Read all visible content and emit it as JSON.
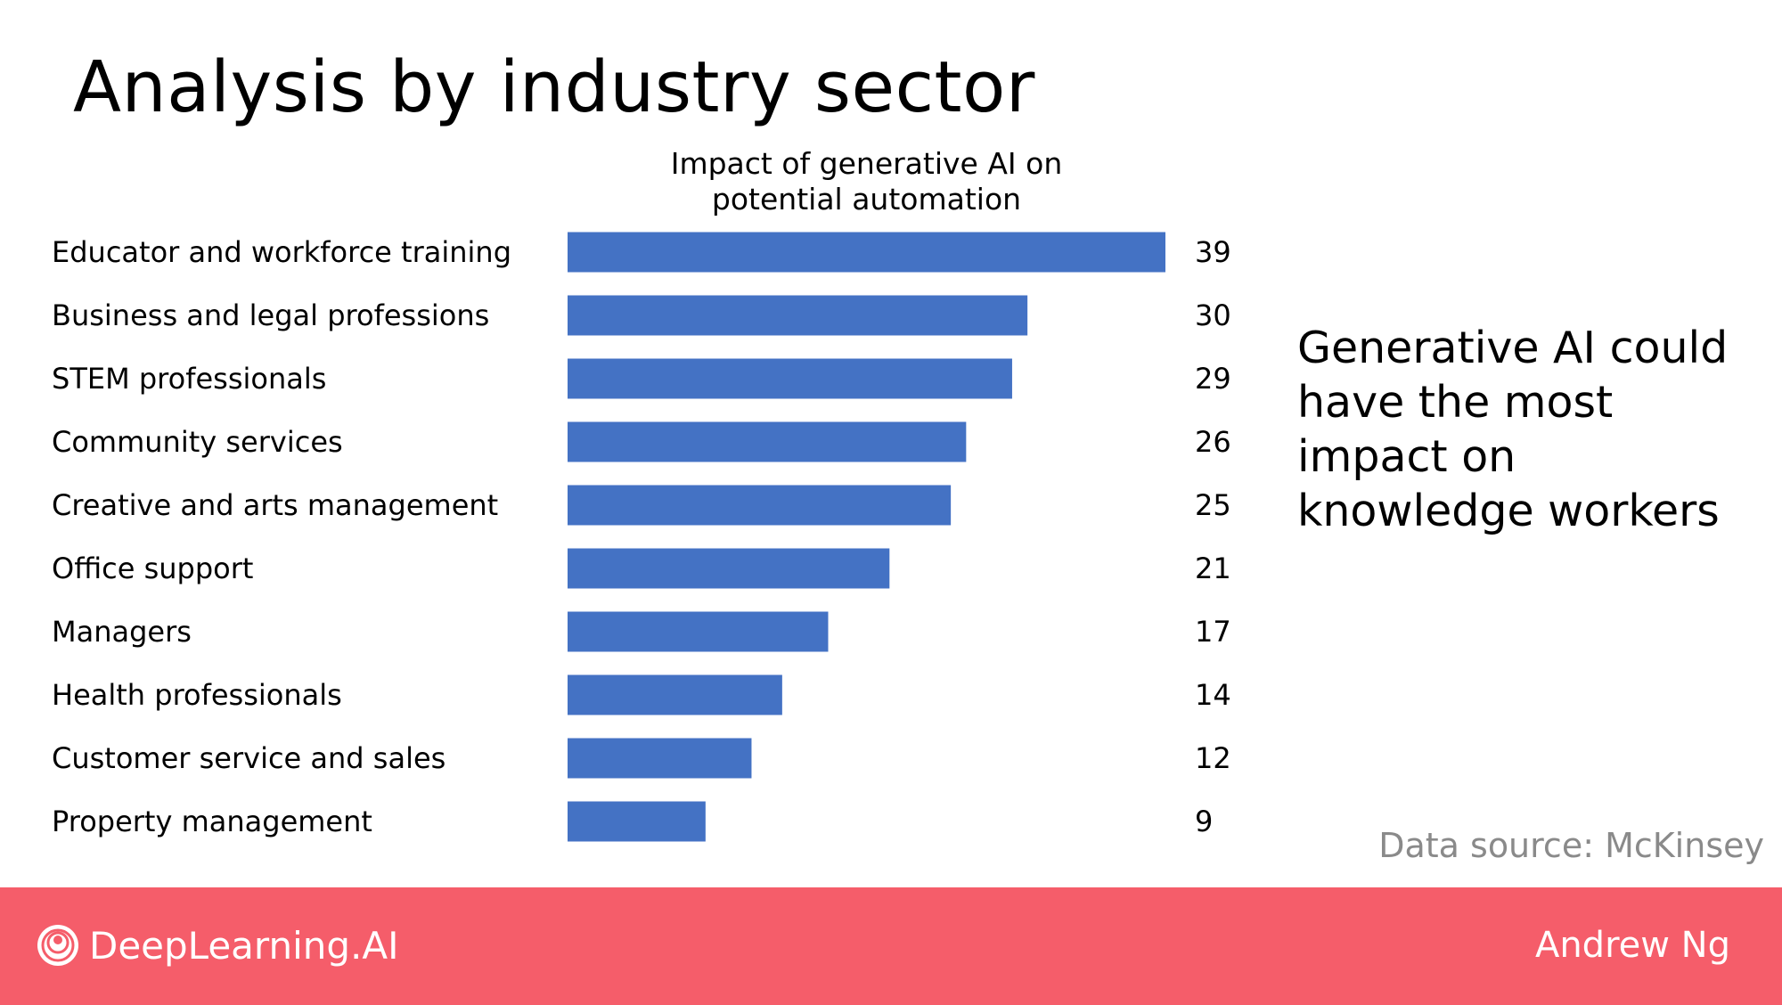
{
  "slide": {
    "title": "Analysis by industry sector",
    "callout": "Generative AI could have the most impact on knowledge workers",
    "source": "Data source: McKinsey"
  },
  "footer": {
    "brand": "DeepLearning.AI",
    "author": "Andrew Ng"
  },
  "colors": {
    "bar": "#4472c4",
    "footer": "#f55d6a"
  },
  "chart_data": {
    "type": "bar",
    "orientation": "horizontal",
    "title": "Impact of generative AI on potential automation",
    "xlabel": "",
    "ylabel": "",
    "categories": [
      "Educator and workforce training",
      "Business and legal professions",
      "STEM professionals",
      "Community  services",
      "Creative and arts management",
      "Office support",
      "Managers",
      "Health professionals",
      "Customer  service and sales",
      "Property management"
    ],
    "values": [
      39,
      30,
      29,
      26,
      25,
      21,
      17,
      14,
      12,
      9
    ],
    "data_labels": true,
    "grid": false,
    "legend": "none"
  }
}
